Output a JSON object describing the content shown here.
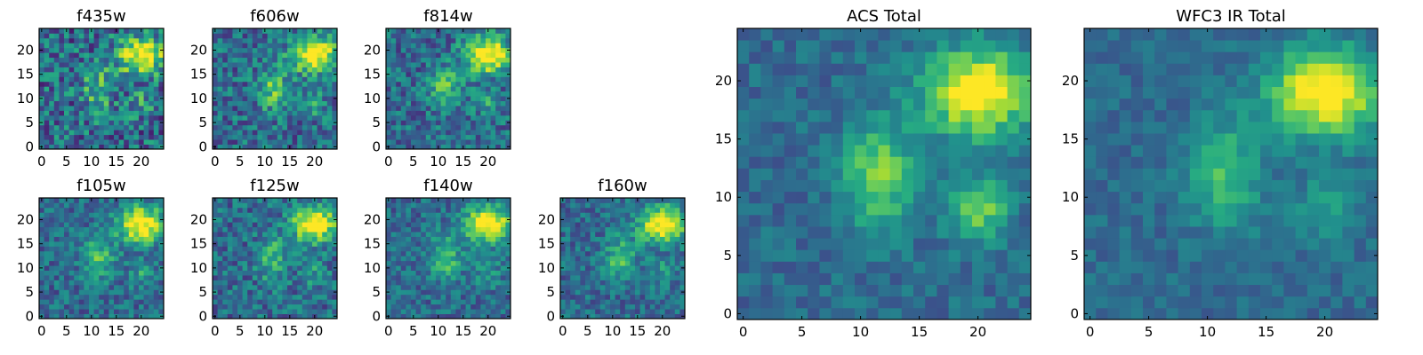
{
  "chart_data": [
    {
      "type": "heatmap",
      "title": "f435w",
      "colormap": "viridis",
      "xticks": [
        "0",
        "5",
        "10",
        "15",
        "20"
      ],
      "yticks": [
        "0",
        "5",
        "10",
        "15",
        "20"
      ],
      "xlim": [
        0,
        25
      ],
      "ylim": [
        0,
        25
      ],
      "grid_size": 25
    },
    {
      "type": "heatmap",
      "title": "f606w",
      "colormap": "viridis",
      "xticks": [
        "0",
        "5",
        "10",
        "15",
        "20"
      ],
      "yticks": [
        "0",
        "5",
        "10",
        "15",
        "20"
      ],
      "xlim": [
        0,
        25
      ],
      "ylim": [
        0,
        25
      ],
      "grid_size": 25
    },
    {
      "type": "heatmap",
      "title": "f814w",
      "colormap": "viridis",
      "xticks": [
        "0",
        "5",
        "10",
        "15",
        "20"
      ],
      "yticks": [
        "0",
        "5",
        "10",
        "15",
        "20"
      ],
      "xlim": [
        0,
        25
      ],
      "ylim": [
        0,
        25
      ],
      "grid_size": 25
    },
    {
      "type": "heatmap",
      "title": "f105w",
      "colormap": "viridis",
      "xticks": [
        "0",
        "5",
        "10",
        "15",
        "20"
      ],
      "yticks": [
        "0",
        "5",
        "10",
        "15",
        "20"
      ],
      "xlim": [
        0,
        25
      ],
      "ylim": [
        0,
        25
      ],
      "grid_size": 25
    },
    {
      "type": "heatmap",
      "title": "f125w",
      "colormap": "viridis",
      "xticks": [
        "0",
        "5",
        "10",
        "15",
        "20"
      ],
      "yticks": [
        "0",
        "5",
        "10",
        "15",
        "20"
      ],
      "xlim": [
        0,
        25
      ],
      "ylim": [
        0,
        25
      ],
      "grid_size": 25
    },
    {
      "type": "heatmap",
      "title": "f140w",
      "colormap": "viridis",
      "xticks": [
        "0",
        "5",
        "10",
        "15",
        "20"
      ],
      "yticks": [
        "0",
        "5",
        "10",
        "15",
        "20"
      ],
      "xlim": [
        0,
        25
      ],
      "ylim": [
        0,
        25
      ],
      "grid_size": 25
    },
    {
      "type": "heatmap",
      "title": "f160w",
      "colormap": "viridis",
      "xticks": [
        "0",
        "5",
        "10",
        "15",
        "20"
      ],
      "yticks": [
        "0",
        "5",
        "10",
        "15",
        "20"
      ],
      "xlim": [
        0,
        25
      ],
      "ylim": [
        0,
        25
      ],
      "grid_size": 25
    },
    {
      "type": "heatmap",
      "title": "ACS Total",
      "colormap": "viridis",
      "xticks": [
        "0",
        "5",
        "10",
        "15",
        "20"
      ],
      "yticks": [
        "0",
        "5",
        "10",
        "15",
        "20"
      ],
      "xlim": [
        0,
        25
      ],
      "ylim": [
        0,
        25
      ],
      "grid_size": 25
    },
    {
      "type": "heatmap",
      "title": "WFC3 IR Total",
      "colormap": "viridis",
      "xticks": [
        "0",
        "5",
        "10",
        "15",
        "20"
      ],
      "yticks": [
        "0",
        "5",
        "10",
        "15",
        "20"
      ],
      "xlim": [
        0,
        25
      ],
      "ylim": [
        0,
        25
      ],
      "grid_size": 25
    }
  ]
}
